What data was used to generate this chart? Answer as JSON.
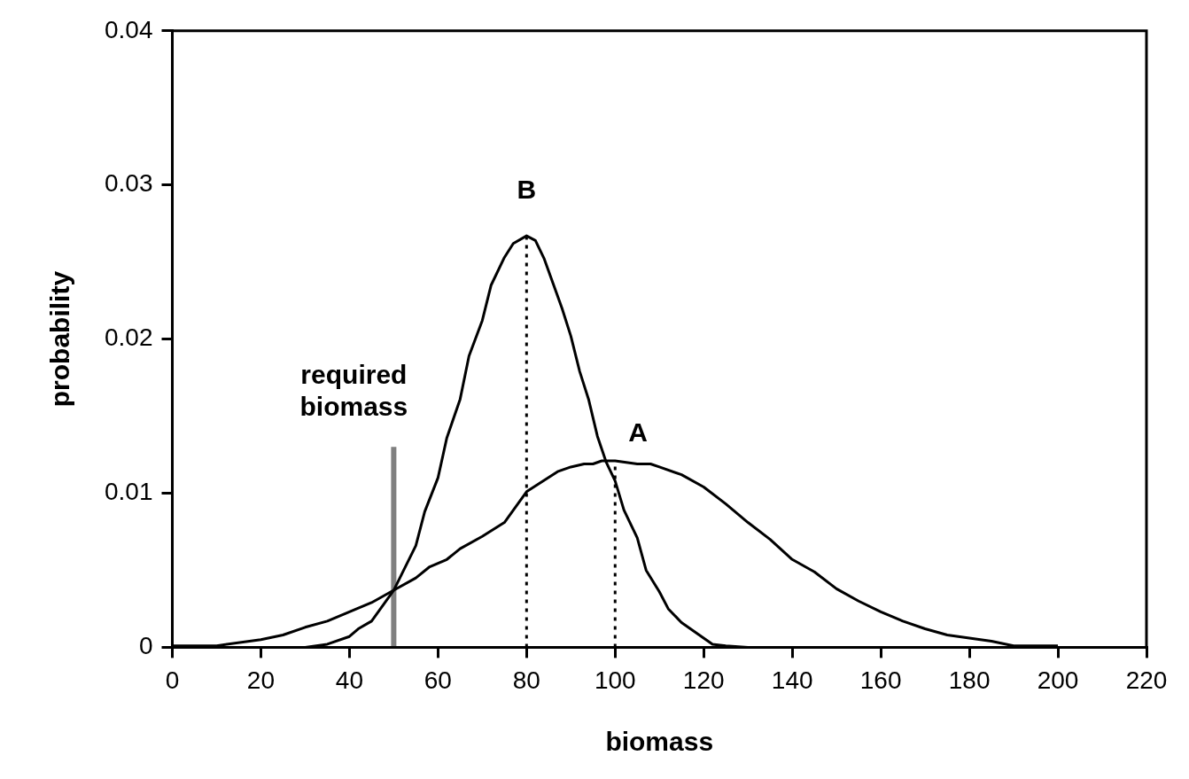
{
  "chart_data": {
    "type": "line",
    "xlabel": "biomass",
    "ylabel": "probability",
    "xlim": [
      0,
      220
    ],
    "xticks": [
      0,
      20,
      40,
      60,
      80,
      100,
      120,
      140,
      160,
      180,
      200,
      220
    ],
    "ylim": [
      0,
      0.04
    ],
    "yticks": [
      0,
      0.01,
      0.02,
      0.03,
      0.04
    ],
    "grid": false,
    "legend": false,
    "marker": "none",
    "line_style": "solid",
    "series": [
      {
        "name": "A",
        "color": "#000000",
        "x": [
          0,
          10,
          20,
          25,
          30,
          35,
          40,
          45,
          50,
          55,
          58,
          62,
          65,
          70,
          75,
          80,
          87,
          90,
          93,
          95,
          97,
          100,
          105,
          108,
          110,
          115,
          120,
          125,
          130,
          135,
          140,
          145,
          150,
          155,
          160,
          165,
          170,
          175,
          180,
          185,
          190,
          200
        ],
        "values": [
          0.0001,
          0.0001,
          0.0005,
          0.0008,
          0.0013,
          0.0017,
          0.0023,
          0.0029,
          0.0037,
          0.0045,
          0.0052,
          0.0057,
          0.0064,
          0.0072,
          0.0081,
          0.0101,
          0.0114,
          0.0117,
          0.0119,
          0.0119,
          0.0121,
          0.0121,
          0.0119,
          0.0119,
          0.0117,
          0.0112,
          0.0104,
          0.0093,
          0.0081,
          0.007,
          0.0057,
          0.0049,
          0.0038,
          0.003,
          0.0023,
          0.0017,
          0.0012,
          0.0008,
          0.0006,
          0.0004,
          0.0001,
          0.0001
        ]
      },
      {
        "name": "B",
        "color": "#000000",
        "x": [
          30,
          35,
          40,
          42,
          45,
          50,
          55,
          57,
          60,
          62,
          65,
          67,
          70,
          72,
          75,
          77,
          80,
          82,
          84,
          86,
          88,
          90,
          92,
          94,
          96,
          98,
          100,
          102,
          105,
          107,
          110,
          112,
          115,
          118,
          120,
          122,
          125,
          130
        ],
        "values": [
          0,
          0.0002,
          0.0007,
          0.0012,
          0.0017,
          0.0037,
          0.0066,
          0.0088,
          0.011,
          0.0136,
          0.0161,
          0.0189,
          0.0212,
          0.0235,
          0.0253,
          0.0262,
          0.0267,
          0.0264,
          0.0252,
          0.0236,
          0.022,
          0.0202,
          0.0179,
          0.0161,
          0.0137,
          0.012,
          0.0108,
          0.0089,
          0.0071,
          0.005,
          0.0036,
          0.0025,
          0.0016,
          0.001,
          0.0006,
          0.0002,
          0.0001,
          0
        ]
      },
      {
        "name": "required biomass",
        "color": "#808080",
        "x": [
          50,
          50
        ],
        "values": [
          0,
          0.013
        ]
      },
      {
        "color": "#000000",
        "line_style": "dotted",
        "x": [
          80,
          80
        ],
        "values": [
          0,
          0.0267
        ]
      },
      {
        "color": "#000000",
        "line_style": "dotted",
        "x": [
          100,
          100
        ],
        "values": [
          0,
          0.0121
        ]
      }
    ]
  }
}
